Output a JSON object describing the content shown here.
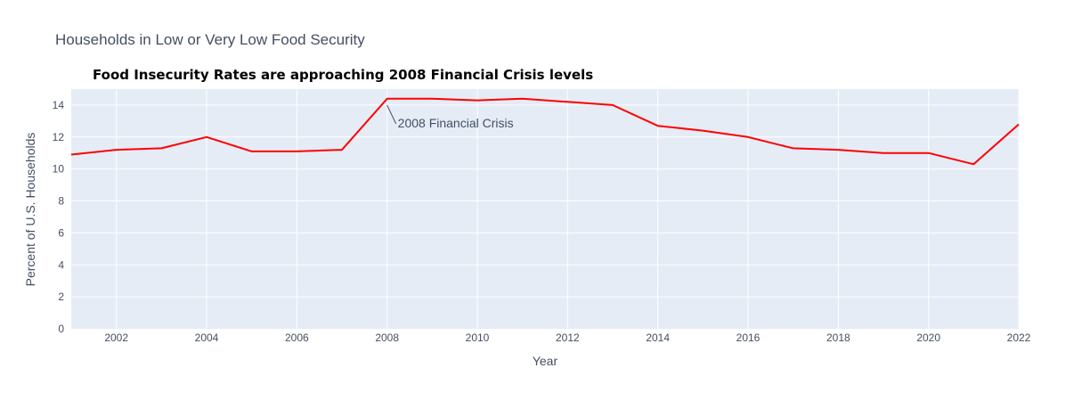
{
  "chart_data": {
    "type": "line",
    "title": "Households in Low or Very Low Food Security",
    "subtitle": "Food Insecurity Rates are approaching 2008 Financial Crisis levels",
    "xlabel": "Year",
    "ylabel": "Percent of U.S. Households",
    "xlim": [
      2001,
      2022
    ],
    "ylim": [
      0,
      15
    ],
    "x_ticks": [
      2002,
      2004,
      2006,
      2008,
      2010,
      2012,
      2014,
      2016,
      2018,
      2020,
      2022
    ],
    "y_ticks": [
      0,
      2,
      4,
      6,
      8,
      10,
      12,
      14
    ],
    "grid": true,
    "colors": {
      "line": "#ff0000",
      "plot_bg": "#e5ecf6",
      "grid": "#ffffff",
      "text": "#444f61"
    },
    "series": [
      {
        "x": [
          2001,
          2002,
          2003,
          2004,
          2005,
          2006,
          2007,
          2008,
          2009,
          2010,
          2011,
          2012,
          2013,
          2014,
          2015,
          2016,
          2017,
          2018,
          2019,
          2020,
          2021,
          2022
        ],
        "values": [
          10.9,
          11.2,
          11.3,
          12.0,
          11.1,
          11.1,
          11.2,
          14.4,
          14.4,
          14.3,
          14.4,
          14.2,
          14.0,
          12.7,
          12.4,
          12.0,
          11.3,
          11.2,
          11.0,
          11.0,
          10.3,
          12.8
        ]
      }
    ],
    "annotations": [
      {
        "text": "2008 Financial Crisis",
        "x": 2008,
        "y": 14.0
      }
    ]
  }
}
